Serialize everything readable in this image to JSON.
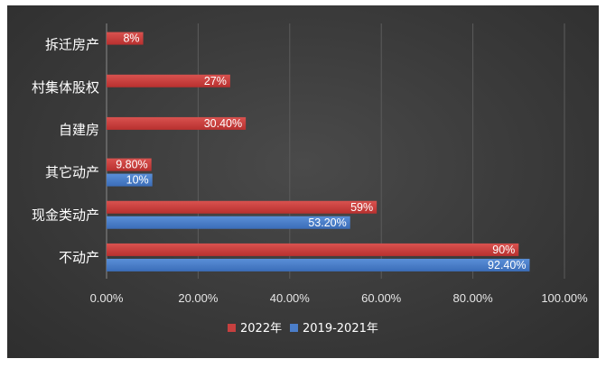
{
  "chart_data": {
    "type": "bar",
    "orientation": "horizontal",
    "title": "",
    "xlabel": "",
    "ylabel": "",
    "categories": [
      "拆迁房产",
      "村集体股权",
      "自建房",
      "其它动产",
      "现金类动产",
      "不动产"
    ],
    "xlim": [
      0,
      1.0
    ],
    "x_ticks": [
      "0.00%",
      "20.00%",
      "40.00%",
      "60.00%",
      "80.00%",
      "100.00%"
    ],
    "grid": "vertical",
    "legend_position": "bottom",
    "series": [
      {
        "name": "2022年",
        "color": "#c6403f",
        "values": [
          0.08,
          0.27,
          0.304,
          0.098,
          0.59,
          0.9
        ],
        "labels": [
          "8%",
          "27%",
          "30.40%",
          "9.80%",
          "59%",
          "90%"
        ]
      },
      {
        "name": "2019-2021年",
        "color": "#4b7ec9",
        "values": [
          null,
          null,
          null,
          0.1,
          0.532,
          0.924
        ],
        "labels": [
          "",
          "",
          "",
          "10%",
          "53.20%",
          "92.40%"
        ]
      }
    ]
  }
}
